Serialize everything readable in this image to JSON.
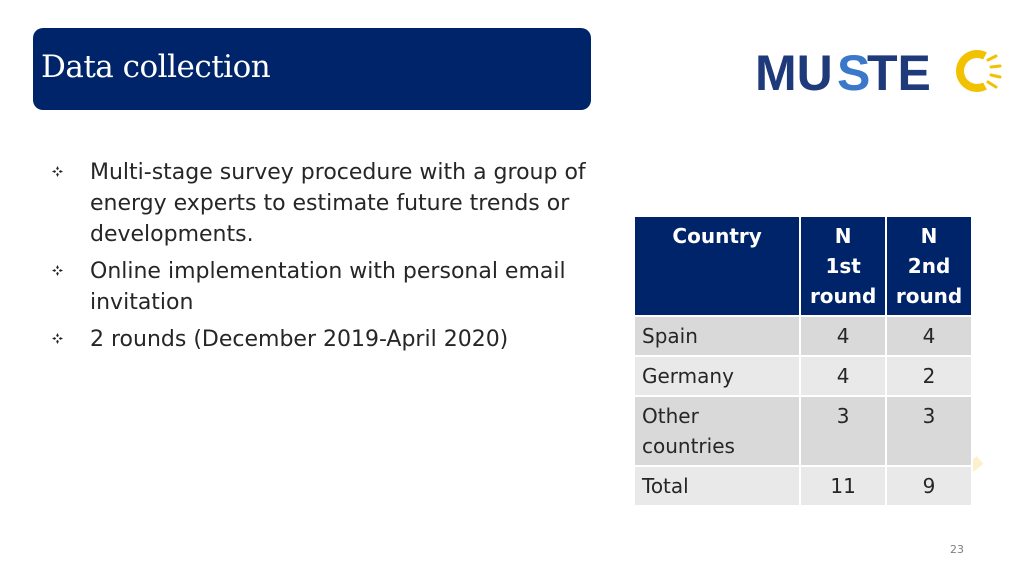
{
  "title": "Data collection",
  "logo": {
    "text_left": "MU",
    "text_s": "S",
    "text_right": "TE",
    "accent_color": "#f2c200",
    "brand_color": "#1f3a7a"
  },
  "bullets": [
    "Multi-stage survey procedure with a group of energy experts to estimate future trends or developments.",
    "Online implementation with personal email invitation",
    "2 rounds (December 2019-April 2020)"
  ],
  "table": {
    "headers": {
      "country": "Country",
      "round1": [
        "N",
        "1st",
        "round"
      ],
      "round2": [
        "N",
        "2nd",
        "round"
      ]
    },
    "rows": [
      {
        "country": "Spain",
        "round1": "4",
        "round2": "4"
      },
      {
        "country": "Germany",
        "round1": "4",
        "round2": "2"
      },
      {
        "country": "Other countries",
        "round1": "3",
        "round2": "3"
      },
      {
        "country": "Total",
        "round1": "11",
        "round2": "9"
      }
    ]
  },
  "page_number": "23"
}
